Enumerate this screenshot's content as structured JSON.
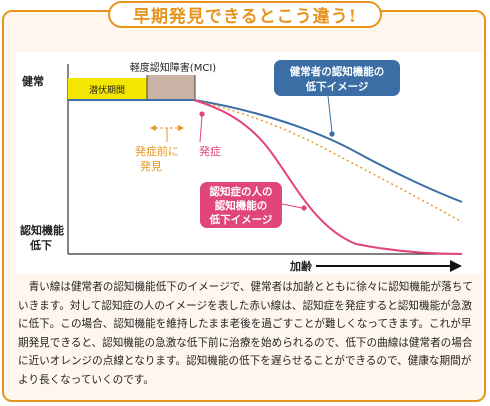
{
  "title": "早期発見できるとこう違う!",
  "diagram": {
    "y_top_label": "健常",
    "y_bottom_label_line1": "認知機能",
    "y_bottom_label_line2": "低下",
    "x_axis_label": "加齢",
    "latent_period_label": "潜伏期間",
    "mci_label": "軽度認知障害(MCI)",
    "pre_onset_line1": "発症前に",
    "pre_onset_line2": "発見",
    "onset_label": "発症",
    "healthy_callout_line1": "健常者の認知機能の",
    "healthy_callout_line2": "低下イメージ",
    "dementia_callout_line1": "認知症の人の",
    "dementia_callout_line2": "認知機能の",
    "dementia_callout_line3": "低下イメージ"
  },
  "colors": {
    "accent_orange": "#e7941f",
    "healthy_blue": "#3a6ea5",
    "dementia_pink": "#e0457b",
    "latent_yellow": "#f5e600",
    "mci_brown": "#c9b3a6",
    "frame_bg": "#fff7ee"
  },
  "description": "青い線は健常者の認知機能低下のイメージで、健常者は加齢とともに徐々に認知機能が落ちていきます。対して認知症の人のイメージを表した赤い線は、認知症を発症すると認知機能が急激に低下。この場合、認知機能を維持したまま老後を過ごすことが難しくなってきます。これが早期発見できると、認知機能の急激な低下前に治療を始められるので、低下の曲線は健常者の場合に近いオレンジの点線となります。認知機能の低下を遅らせることができるので、健康な期間がより長くなっていくのです。"
}
